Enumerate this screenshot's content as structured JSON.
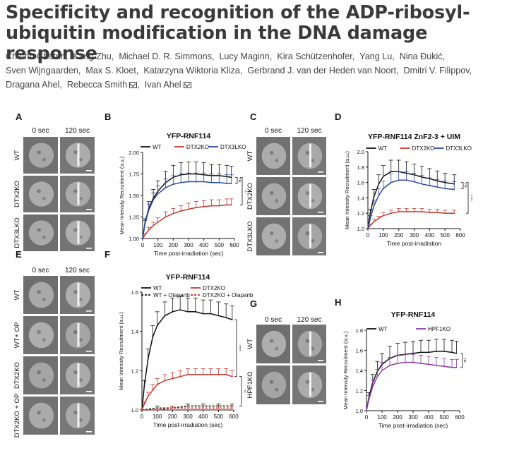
{
  "title": "Specificity and recognition of the ADP-ribosyl-ubiquitin modification in the DNA damage response",
  "authors": [
    {
      "name": "Chatrin Chatrin",
      "email": false
    },
    {
      "name": "Kang Zhu",
      "email": false
    },
    {
      "name": "Michael D. R. Simmons",
      "email": false
    },
    {
      "name": "Lucy Maginn",
      "email": false
    },
    {
      "name": "Kira Schützenhofer",
      "email": false
    },
    {
      "name": "Yang Lu",
      "email": false
    },
    {
      "name": "Nina Đukić",
      "email": false
    },
    {
      "name": "Sven Wijngaarden",
      "email": false
    },
    {
      "name": "Max S. Kloet",
      "email": false
    },
    {
      "name": "Katarzyna Wiktoria Kliza",
      "email": false
    },
    {
      "name": "Gerbrand J. van der Heden van Noort",
      "email": false
    },
    {
      "name": "Dmitri V. Filippov",
      "email": false
    },
    {
      "name": "Dragana Ahel",
      "email": false
    },
    {
      "name": "Rebecca Smith",
      "email": true
    },
    {
      "name": "Ivan Ahel",
      "email": true
    }
  ],
  "colors": {
    "wt": "#111111",
    "dtx2": "#c8362d",
    "dtx3": "#2a48a0",
    "hpf1": "#8a3aa8"
  },
  "micro_panels": [
    {
      "letter": "A",
      "times": [
        "0 sec",
        "120 sec"
      ],
      "rows": [
        "WT",
        "DTX2KO",
        "DTX3LKO"
      ]
    },
    {
      "letter": "C",
      "times": [
        "0 sec",
        "120 sec"
      ],
      "rows": [
        "WT",
        "DTX2KO",
        "DTX3LKO"
      ]
    },
    {
      "letter": "E",
      "times": [
        "0 sec",
        "120 sec"
      ],
      "rows": [
        "WT",
        "WT+ OP",
        "DTX2KO",
        "DTX2KO + OP"
      ]
    },
    {
      "letter": "G",
      "times": [
        "0 sec",
        "120 sec"
      ],
      "rows": [
        "WT",
        "HPF1KO"
      ]
    }
  ],
  "chart_data": [
    {
      "panel": "B",
      "type": "line",
      "title": "YFP-RNF114",
      "xlabel": "Time post-irradiation (sec)",
      "ylabel": "Mean Intensity Recruitment (a.u.)",
      "xlim": [
        0,
        600
      ],
      "ylim": [
        1.0,
        2.0
      ],
      "xticks": [
        0,
        100,
        200,
        300,
        400,
        500,
        600
      ],
      "yticks": [
        1.0,
        1.25,
        1.5,
        1.75,
        2.0
      ],
      "ytick_labels": [
        "1.00",
        "1.25",
        "1.50",
        "1.75",
        "2.00"
      ],
      "legend_position": "top",
      "series": [
        {
          "name": "WT",
          "color_key": "wt",
          "x": [
            0,
            15,
            40,
            70,
            100,
            150,
            200,
            250,
            300,
            350,
            400,
            450,
            500,
            550,
            580
          ],
          "y": [
            1.0,
            1.18,
            1.35,
            1.47,
            1.55,
            1.65,
            1.71,
            1.74,
            1.75,
            1.75,
            1.74,
            1.73,
            1.73,
            1.72,
            1.71
          ],
          "err": [
            0,
            0.05,
            0.08,
            0.1,
            0.12,
            0.13,
            0.14,
            0.14,
            0.14,
            0.14,
            0.14,
            0.13,
            0.13,
            0.13,
            0.13
          ]
        },
        {
          "name": "DTX2KO",
          "color_key": "dtx2",
          "x": [
            0,
            15,
            40,
            70,
            100,
            150,
            200,
            250,
            300,
            350,
            400,
            450,
            500,
            550,
            580
          ],
          "y": [
            1.0,
            1.04,
            1.1,
            1.15,
            1.19,
            1.25,
            1.29,
            1.32,
            1.34,
            1.36,
            1.37,
            1.38,
            1.38,
            1.39,
            1.39
          ],
          "err": [
            0,
            0.02,
            0.03,
            0.04,
            0.05,
            0.06,
            0.06,
            0.06,
            0.07,
            0.07,
            0.07,
            0.07,
            0.07,
            0.07,
            0.07
          ]
        },
        {
          "name": "DTX3LKO",
          "color_key": "dtx3",
          "x": [
            0,
            15,
            40,
            70,
            100,
            150,
            200,
            250,
            300,
            350,
            400,
            450,
            500,
            550,
            580
          ],
          "y": [
            1.0,
            1.17,
            1.33,
            1.45,
            1.52,
            1.59,
            1.63,
            1.65,
            1.66,
            1.66,
            1.66,
            1.65,
            1.65,
            1.64,
            1.64
          ],
          "err": [
            0,
            0.04,
            0.07,
            0.08,
            0.09,
            0.1,
            0.1,
            0.1,
            0.1,
            0.1,
            0.1,
            0.1,
            0.1,
            0.1,
            0.1
          ]
        }
      ],
      "sig": [
        {
          "label": "ns",
          "from": 1.71,
          "to": 1.64
        },
        {
          "label": "**",
          "from": 1.71,
          "to": 1.39
        }
      ]
    },
    {
      "panel": "D",
      "type": "line",
      "title": "YFP-RNF114 ZnF2-3 + UIM",
      "xlabel": "Time post-irradiation",
      "ylabel": "Mean Intensity Recruitment (a.u.)",
      "xlim": [
        0,
        600
      ],
      "ylim": [
        1.0,
        2.0
      ],
      "xticks": [
        0,
        100,
        200,
        300,
        400,
        500,
        600
      ],
      "yticks": [
        1.0,
        1.2,
        1.4,
        1.6,
        1.8,
        2.0
      ],
      "ytick_labels": [
        "1.0",
        "1.2",
        "1.4",
        "1.6",
        "1.8",
        "2.0"
      ],
      "legend_position": "top",
      "series": [
        {
          "name": "WT",
          "color_key": "wt",
          "x": [
            0,
            15,
            40,
            70,
            100,
            150,
            200,
            250,
            300,
            350,
            400,
            450,
            500,
            560
          ],
          "y": [
            1.0,
            1.2,
            1.42,
            1.58,
            1.68,
            1.74,
            1.74,
            1.72,
            1.7,
            1.67,
            1.65,
            1.62,
            1.6,
            1.58
          ],
          "err": [
            0,
            0.05,
            0.09,
            0.12,
            0.14,
            0.15,
            0.15,
            0.15,
            0.14,
            0.14,
            0.13,
            0.13,
            0.12,
            0.12
          ]
        },
        {
          "name": "DTX2KO",
          "color_key": "dtx2",
          "x": [
            0,
            15,
            40,
            70,
            100,
            150,
            200,
            250,
            300,
            350,
            400,
            450,
            500,
            560
          ],
          "y": [
            1.0,
            1.04,
            1.09,
            1.13,
            1.17,
            1.2,
            1.22,
            1.22,
            1.22,
            1.22,
            1.21,
            1.21,
            1.2,
            1.2
          ],
          "err": [
            0,
            0.02,
            0.03,
            0.03,
            0.04,
            0.04,
            0.04,
            0.04,
            0.04,
            0.04,
            0.04,
            0.04,
            0.04,
            0.04
          ]
        },
        {
          "name": "DTX3LKO",
          "color_key": "dtx3",
          "x": [
            0,
            15,
            40,
            70,
            100,
            150,
            200,
            250,
            300,
            350,
            400,
            450,
            500,
            560
          ],
          "y": [
            1.0,
            1.13,
            1.3,
            1.43,
            1.52,
            1.6,
            1.63,
            1.63,
            1.61,
            1.58,
            1.56,
            1.54,
            1.52,
            1.51
          ],
          "err": [
            0,
            0.04,
            0.07,
            0.09,
            0.1,
            0.11,
            0.11,
            0.11,
            0.11,
            0.11,
            0.1,
            0.1,
            0.1,
            0.1
          ]
        }
      ],
      "sig": [
        {
          "label": "ns",
          "from": 1.6,
          "to": 1.52
        },
        {
          "label": "****",
          "from": 1.6,
          "to": 1.2
        }
      ]
    },
    {
      "panel": "F",
      "type": "line",
      "title": "YFP-RNF114",
      "xlabel": "Time post-irradiation (sec)",
      "ylabel": "Mean Intensity Recruitment (a.u.)",
      "xlim": [
        0,
        600
      ],
      "ylim": [
        1.0,
        1.6
      ],
      "xticks": [
        0,
        100,
        200,
        300,
        400,
        500,
        600
      ],
      "yticks": [
        1.0,
        1.2,
        1.4,
        1.6
      ],
      "ytick_labels": [
        "1.0",
        "1.2",
        "1.4",
        "1.6"
      ],
      "legend_position": "top",
      "series": [
        {
          "name": "WT",
          "color_key": "wt",
          "x": [
            0,
            15,
            40,
            70,
            100,
            150,
            200,
            250,
            300,
            350,
            400,
            450,
            500,
            550,
            590
          ],
          "y": [
            1.0,
            1.12,
            1.26,
            1.37,
            1.43,
            1.48,
            1.5,
            1.51,
            1.5,
            1.5,
            1.49,
            1.49,
            1.48,
            1.47,
            1.46
          ],
          "err": [
            0,
            0.03,
            0.05,
            0.06,
            0.07,
            0.07,
            0.07,
            0.07,
            0.07,
            0.07,
            0.07,
            0.07,
            0.07,
            0.07,
            0.07
          ]
        },
        {
          "name": "DTX2KO",
          "color_key": "dtx2",
          "x": [
            0,
            15,
            40,
            70,
            100,
            150,
            200,
            250,
            300,
            350,
            400,
            450,
            500,
            550,
            590
          ],
          "y": [
            1.0,
            1.03,
            1.07,
            1.1,
            1.13,
            1.15,
            1.16,
            1.17,
            1.18,
            1.18,
            1.18,
            1.18,
            1.18,
            1.18,
            1.17
          ],
          "err": [
            0,
            0.01,
            0.02,
            0.03,
            0.03,
            0.03,
            0.03,
            0.03,
            0.03,
            0.03,
            0.03,
            0.03,
            0.03,
            0.03,
            0.03
          ]
        },
        {
          "name": "WT + Olaparib",
          "color_key": "wt",
          "dashed": true,
          "x": [
            0,
            100,
            200,
            300,
            400,
            500,
            590
          ],
          "y": [
            1.0,
            1.01,
            1.01,
            1.02,
            1.02,
            1.02,
            1.02
          ],
          "err": [
            0,
            0.01,
            0.01,
            0.01,
            0.01,
            0.01,
            0.01
          ]
        },
        {
          "name": "DTX2KO + Olaparib",
          "color_key": "dtx2",
          "dashed": true,
          "x": [
            0,
            100,
            200,
            300,
            400,
            500,
            590
          ],
          "y": [
            1.0,
            1.0,
            1.01,
            1.01,
            1.01,
            1.01,
            1.01
          ],
          "err": [
            0,
            0.01,
            0.01,
            0.01,
            0.01,
            0.01,
            0.01
          ]
        }
      ],
      "sig": [
        {
          "label": "****",
          "from": 1.46,
          "to": 1.17
        },
        {
          "label": "**",
          "from": 1.17,
          "to": 1.02
        }
      ]
    },
    {
      "panel": "H",
      "type": "line",
      "title": "YFP-RNF114",
      "xlabel": "Time post-irradiation (sec)",
      "ylabel": "Mean Intensity Recruitment (a.u.)",
      "xlim": [
        0,
        600
      ],
      "ylim": [
        1.0,
        1.8
      ],
      "xticks": [
        0,
        100,
        200,
        300,
        400,
        500,
        600
      ],
      "yticks": [
        1.0,
        1.2,
        1.4,
        1.6,
        1.8
      ],
      "ytick_labels": [
        "1.0",
        "1.2",
        "1.4",
        "1.6",
        "1.8"
      ],
      "legend_position": "top",
      "series": [
        {
          "name": "WT",
          "color_key": "wt",
          "x": [
            0,
            15,
            40,
            70,
            100,
            150,
            200,
            250,
            300,
            350,
            400,
            450,
            500,
            550,
            580
          ],
          "y": [
            1.0,
            1.13,
            1.28,
            1.39,
            1.46,
            1.52,
            1.55,
            1.56,
            1.57,
            1.58,
            1.58,
            1.59,
            1.59,
            1.58,
            1.57
          ],
          "err": [
            0,
            0.05,
            0.08,
            0.1,
            0.11,
            0.12,
            0.12,
            0.12,
            0.12,
            0.12,
            0.12,
            0.12,
            0.12,
            0.12,
            0.12
          ]
        },
        {
          "name": "HPF1KO",
          "color_key": "hpf1",
          "x": [
            0,
            15,
            40,
            70,
            100,
            150,
            200,
            250,
            300,
            350,
            400,
            450,
            500,
            550,
            580
          ],
          "y": [
            1.0,
            1.11,
            1.24,
            1.34,
            1.4,
            1.45,
            1.47,
            1.48,
            1.48,
            1.47,
            1.46,
            1.45,
            1.44,
            1.43,
            1.43
          ],
          "err": [
            0,
            0.04,
            0.06,
            0.07,
            0.08,
            0.08,
            0.08,
            0.08,
            0.08,
            0.08,
            0.08,
            0.08,
            0.08,
            0.08,
            0.08
          ]
        }
      ],
      "sig": [
        {
          "label": "ns",
          "from": 1.57,
          "to": 1.43
        }
      ]
    }
  ]
}
